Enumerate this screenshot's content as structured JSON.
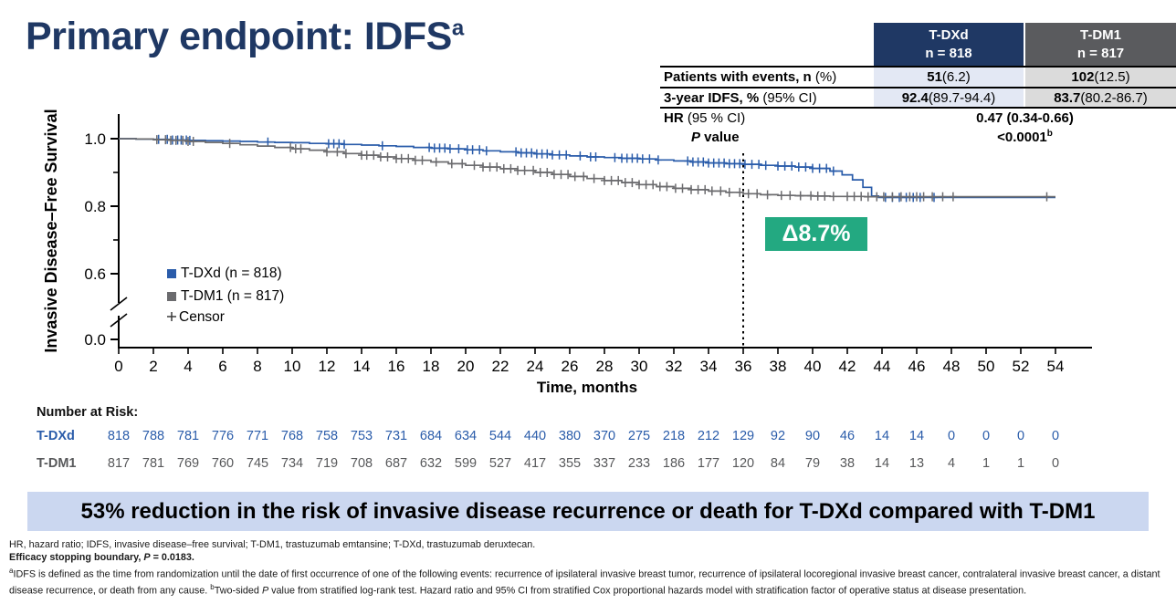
{
  "title": {
    "text": "Primary endpoint: IDFS",
    "sup": "a"
  },
  "stats_table": {
    "col_headers": [
      {
        "line1": "T-DXd",
        "line2": "n = 818"
      },
      {
        "line1": "T-DM1",
        "line2": "n = 817"
      }
    ],
    "rows": [
      {
        "label_bold": "Patients with events, n",
        "label_rest": " (%)",
        "v1_bold": "51",
        "v1_rest": " (6.2)",
        "v2_bold": "102",
        "v2_rest": " (12.5)"
      },
      {
        "label_bold": "3-year IDFS, %",
        "label_rest": " (95% CI)",
        "v1_bold": "92.4",
        "v1_rest": " (89.7-94.4)",
        "v2_bold": "83.7",
        "v2_rest": " (80.2-86.7)"
      }
    ],
    "hr_row": {
      "label_bold": "HR",
      "label_rest": " (95 % CI)",
      "value_bold": "0.47",
      "value_rest": " (0.34-0.66)"
    },
    "p_row": {
      "label_italic": "P",
      "label_rest": " value",
      "value_bold": "<0.0001",
      "value_sup": "b"
    }
  },
  "chart_data": {
    "type": "line",
    "subtype": "kaplan-meier",
    "xlabel": "Time, months",
    "ylabel": "Invasive Disease–Free Survival",
    "xlim": [
      0,
      54
    ],
    "xticks": [
      0,
      2,
      4,
      6,
      8,
      10,
      12,
      14,
      16,
      18,
      20,
      22,
      24,
      26,
      28,
      30,
      32,
      34,
      36,
      38,
      40,
      42,
      44,
      46,
      48,
      50,
      52,
      54
    ],
    "yticks_major": [
      1.0,
      0.8,
      0.6,
      0.0
    ],
    "ytick_labels": [
      "1.0",
      "0.8",
      "0.6",
      "0.0"
    ],
    "yticks_minor": [
      0.9,
      0.7
    ],
    "axis_break_between": [
      0.6,
      0.0
    ],
    "reference_line_x": 36,
    "delta_label": "Δ8.7%",
    "delta_color": "#23A981",
    "legend": [
      {
        "label": "T-DXd (n = 818)",
        "color": "#2A5CAA",
        "marker": "square"
      },
      {
        "label": "T-DM1 (n = 817)",
        "color": "#6B6B6E",
        "marker": "square"
      },
      {
        "label": "Censor",
        "color": "#3a3a3a",
        "marker": "plus"
      }
    ],
    "series": [
      {
        "name": "T-DXd",
        "color": "#2A5CAA",
        "points": [
          [
            0,
            1.0
          ],
          [
            1,
            0.999
          ],
          [
            2,
            0.998
          ],
          [
            3,
            0.996
          ],
          [
            4,
            0.995
          ],
          [
            5,
            0.994
          ],
          [
            6,
            0.993
          ],
          [
            7,
            0.992
          ],
          [
            8,
            0.99
          ],
          [
            9,
            0.989
          ],
          [
            10,
            0.988
          ],
          [
            11,
            0.986
          ],
          [
            12,
            0.985
          ],
          [
            13,
            0.983
          ],
          [
            14,
            0.981
          ],
          [
            15,
            0.979
          ],
          [
            16,
            0.977
          ],
          [
            17,
            0.974
          ],
          [
            18,
            0.972
          ],
          [
            19,
            0.97
          ],
          [
            20,
            0.967
          ],
          [
            21,
            0.964
          ],
          [
            22,
            0.961
          ],
          [
            23,
            0.958
          ],
          [
            24,
            0.955
          ],
          [
            25,
            0.952
          ],
          [
            26,
            0.949
          ],
          [
            27,
            0.946
          ],
          [
            28,
            0.944
          ],
          [
            29,
            0.942
          ],
          [
            30,
            0.94
          ],
          [
            31,
            0.937
          ],
          [
            32,
            0.934
          ],
          [
            33,
            0.931
          ],
          [
            34,
            0.928
          ],
          [
            35,
            0.926
          ],
          [
            36,
            0.924
          ],
          [
            37,
            0.921
          ],
          [
            38,
            0.919
          ],
          [
            39,
            0.916
          ],
          [
            40,
            0.912
          ],
          [
            41,
            0.904
          ],
          [
            41.7,
            0.893
          ],
          [
            42.3,
            0.878
          ],
          [
            42.9,
            0.856
          ],
          [
            43.4,
            0.83
          ],
          [
            43.8,
            0.826
          ],
          [
            54,
            0.826
          ]
        ],
        "censors": [
          2.3,
          2.8,
          3.1,
          3.4,
          3.6,
          3.9,
          4.1,
          8.6,
          12.1,
          12.4,
          12.7,
          13.0,
          15.2,
          17.9,
          18.2,
          18.5,
          18.8,
          19.1,
          19.6,
          20.1,
          20.4,
          20.8,
          21.2,
          22.9,
          23.2,
          23.5,
          23.8,
          24.1,
          24.4,
          24.7,
          25.0,
          25.4,
          25.8,
          26.6,
          27.2,
          27.5,
          28.6,
          29.0,
          29.3,
          29.6,
          29.9,
          30.2,
          30.6,
          31.1,
          32.8,
          33.1,
          33.4,
          33.7,
          34.0,
          34.3,
          34.6,
          34.9,
          35.2,
          35.5,
          35.8,
          36.1,
          36.5,
          36.9,
          37.3,
          38.0,
          38.4,
          38.8,
          39.2,
          39.6,
          40.0,
          40.4,
          40.8,
          41.2,
          44.2,
          44.6,
          45.0,
          45.4,
          45.8,
          46.2,
          47.0
        ]
      },
      {
        "name": "T-DM1",
        "color": "#6B6B6E",
        "points": [
          [
            0,
            1.0
          ],
          [
            1,
            0.999
          ],
          [
            2,
            0.997
          ],
          [
            3,
            0.995
          ],
          [
            4,
            0.992
          ],
          [
            5,
            0.989
          ],
          [
            6,
            0.986
          ],
          [
            7,
            0.982
          ],
          [
            8,
            0.978
          ],
          [
            9,
            0.974
          ],
          [
            10,
            0.97
          ],
          [
            11,
            0.966
          ],
          [
            12,
            0.961
          ],
          [
            13,
            0.956
          ],
          [
            14,
            0.951
          ],
          [
            15,
            0.946
          ],
          [
            16,
            0.941
          ],
          [
            17,
            0.936
          ],
          [
            18,
            0.931
          ],
          [
            19,
            0.926
          ],
          [
            20,
            0.921
          ],
          [
            21,
            0.916
          ],
          [
            22,
            0.911
          ],
          [
            23,
            0.906
          ],
          [
            24,
            0.9
          ],
          [
            25,
            0.894
          ],
          [
            26,
            0.888
          ],
          [
            27,
            0.882
          ],
          [
            28,
            0.876
          ],
          [
            29,
            0.87
          ],
          [
            30,
            0.864
          ],
          [
            31,
            0.858
          ],
          [
            32,
            0.853
          ],
          [
            33,
            0.849
          ],
          [
            34,
            0.845
          ],
          [
            35,
            0.841
          ],
          [
            36,
            0.837
          ],
          [
            37,
            0.834
          ],
          [
            38,
            0.832
          ],
          [
            39,
            0.831
          ],
          [
            40,
            0.83
          ],
          [
            41,
            0.829
          ],
          [
            42,
            0.829
          ],
          [
            43,
            0.828
          ],
          [
            44,
            0.828
          ],
          [
            54,
            0.828
          ]
        ],
        "censors": [
          2.2,
          2.7,
          3.0,
          3.3,
          3.7,
          4.0,
          4.3,
          6.4,
          9.9,
          10.2,
          10.5,
          12.0,
          12.6,
          13.1,
          14.0,
          14.3,
          14.7,
          15.1,
          15.5,
          16.0,
          16.3,
          16.7,
          17.1,
          17.5,
          18.3,
          19.2,
          19.8,
          20.5,
          21.0,
          21.4,
          21.8,
          22.2,
          22.6,
          23.0,
          23.4,
          23.9,
          24.3,
          24.7,
          25.1,
          25.5,
          25.9,
          26.3,
          26.8,
          27.4,
          28.0,
          28.4,
          28.8,
          29.2,
          29.6,
          30.0,
          30.4,
          30.8,
          31.2,
          31.6,
          32.1,
          32.5,
          33.0,
          33.4,
          33.8,
          34.2,
          34.7,
          35.2,
          35.8,
          36.3,
          36.8,
          37.4,
          38.2,
          38.7,
          39.3,
          39.9,
          40.3,
          40.7,
          41.2,
          42.0,
          42.4,
          42.8,
          43.2,
          43.7,
          44.1,
          44.6,
          45.1,
          45.6,
          46.0,
          46.4,
          46.9,
          47.5,
          48.1,
          53.5
        ]
      }
    ],
    "number_at_risk": {
      "heading": "Number at Risk:",
      "times": [
        0,
        2,
        4,
        6,
        8,
        10,
        12,
        14,
        16,
        18,
        20,
        22,
        24,
        26,
        28,
        30,
        32,
        34,
        36,
        38,
        40,
        42,
        44,
        46,
        48,
        50,
        52,
        54
      ],
      "rows": [
        {
          "name": "T-DXd",
          "color": "#2A5CAA",
          "values": [
            818,
            788,
            781,
            776,
            771,
            768,
            758,
            753,
            731,
            684,
            634,
            544,
            440,
            380,
            370,
            275,
            218,
            212,
            129,
            92,
            90,
            46,
            14,
            14,
            0,
            0,
            0,
            0
          ]
        },
        {
          "name": "T-DM1",
          "color": "#58595B",
          "values": [
            817,
            781,
            769,
            760,
            745,
            734,
            719,
            708,
            687,
            632,
            599,
            527,
            417,
            355,
            337,
            233,
            186,
            177,
            120,
            84,
            79,
            38,
            14,
            13,
            4,
            1,
            1,
            0
          ]
        }
      ]
    }
  },
  "banner": {
    "text": "53% reduction in the risk of invasive disease recurrence or death for T-DXd compared with T-DM1"
  },
  "footnotes": {
    "line1": "HR, hazard ratio; IDFS, invasive disease–free survival; T-DM1, trastuzumab emtansine; T-DXd, trastuzumab deruxtecan.",
    "line2_pre": "Efficacy stopping boundary, ",
    "line2_italic": "P",
    "line2_post": " = 0.0183.",
    "fn3_sup1": "a",
    "fn3_part1": "IDFS is defined as the time from randomization until the date of first occurrence of one of the following events: recurrence of ipsilateral invasive breast tumor, recurrence of ipsilateral locoregional invasive breast cancer, contralateral invasive breast cancer, a distant disease recurrence, or death from any cause. ",
    "fn3_sup2": "b",
    "fn3_part2": "Two-sided ",
    "fn3_italic": "P",
    "fn3_part3": " value from stratified log-rank test. Hazard ratio and 95% CI from stratified Cox proportional hazards model with stratification factor of operative status at disease presentation."
  }
}
